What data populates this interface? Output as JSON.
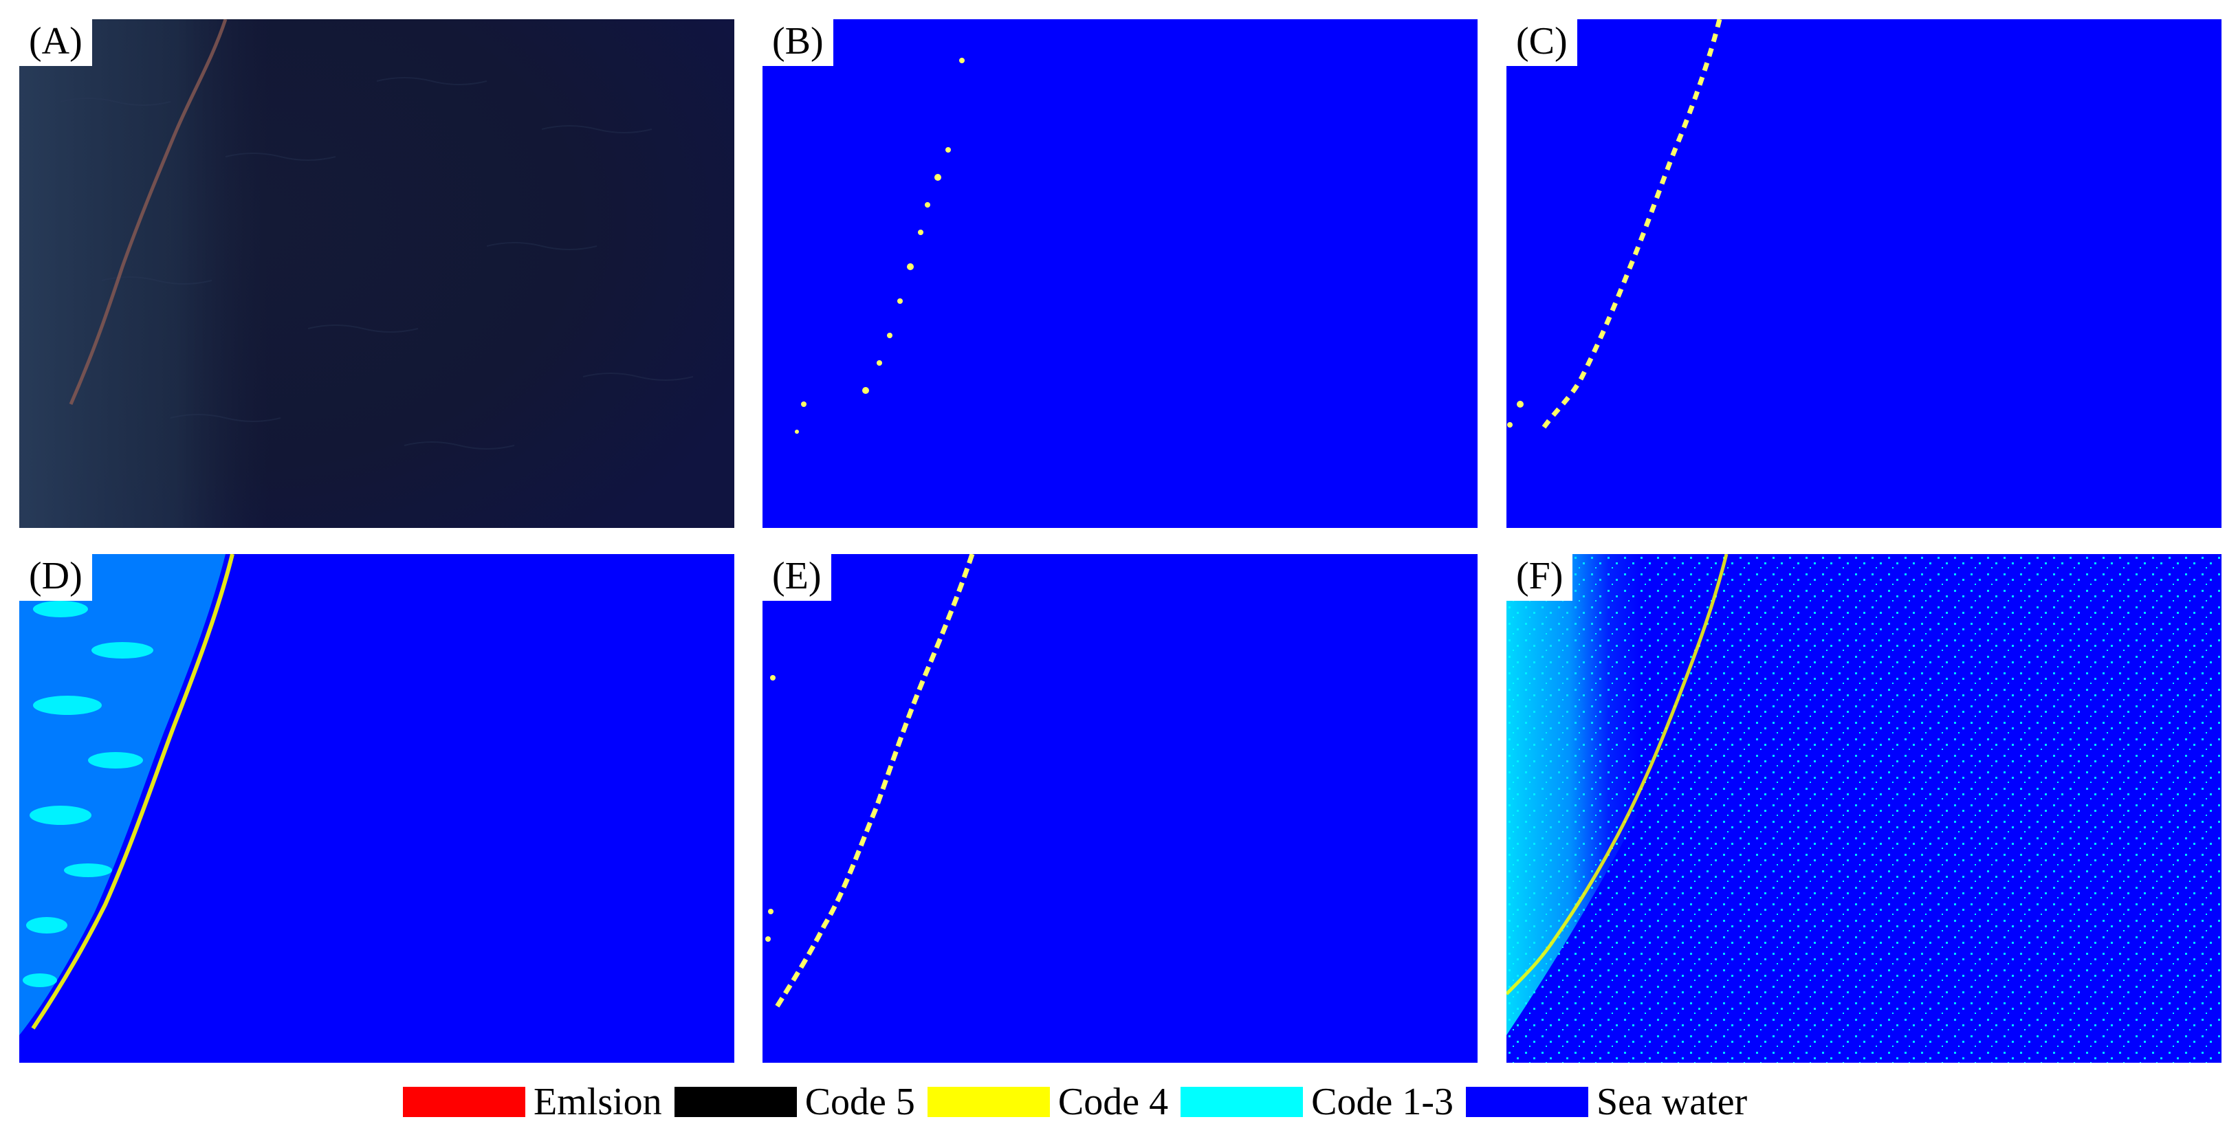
{
  "panels": [
    {
      "label": "(A)",
      "kind": "satellite-rgb"
    },
    {
      "label": "(B)",
      "kind": "classification-sparse"
    },
    {
      "label": "(C)",
      "kind": "classification-sparse"
    },
    {
      "label": "(D)",
      "kind": "classification-dense-left"
    },
    {
      "label": "(E)",
      "kind": "classification-sparse"
    },
    {
      "label": "(F)",
      "kind": "classification-noisy"
    }
  ],
  "legend": [
    {
      "label": "Emlsion",
      "color": "#ff0000"
    },
    {
      "label": "Code 5",
      "color": "#000000"
    },
    {
      "label": "Code 4",
      "color": "#ffff00"
    },
    {
      "label": "Code 1-3",
      "color": "#00ffff"
    },
    {
      "label": "Sea water",
      "color": "#0000ff"
    }
  ]
}
